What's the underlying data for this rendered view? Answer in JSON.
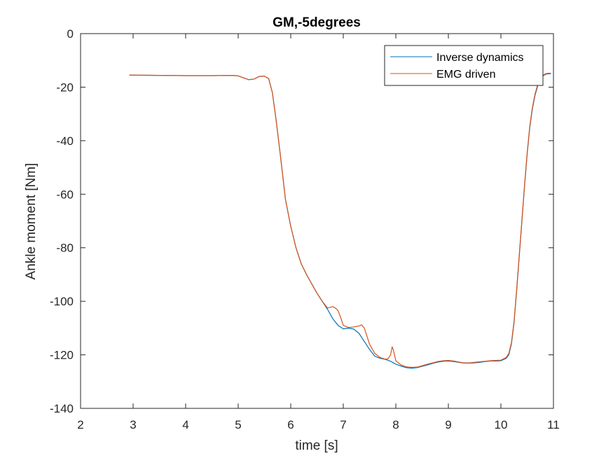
{
  "chart_data": {
    "type": "line",
    "title": "GM,-5degrees",
    "xlabel": "time  [s]",
    "ylabel": "Ankle moment [Nm]",
    "xlim": [
      2,
      11
    ],
    "ylim": [
      -140,
      0
    ],
    "xticks": [
      2,
      3,
      4,
      5,
      6,
      7,
      8,
      9,
      10,
      11
    ],
    "yticks": [
      0,
      -20,
      -40,
      -60,
      -80,
      -100,
      -120,
      -140
    ],
    "grid": false,
    "legend_position": "top-right",
    "series": [
      {
        "name": "Inverse dynamics",
        "color": "#0072BD",
        "x": [
          2.93,
          3.5,
          4.0,
          4.5,
          4.9,
          5.0,
          5.1,
          5.2,
          5.3,
          5.4,
          5.5,
          5.58,
          5.65,
          5.72,
          5.8,
          5.9,
          6.0,
          6.1,
          6.2,
          6.3,
          6.4,
          6.5,
          6.6,
          6.7,
          6.8,
          6.9,
          7.0,
          7.1,
          7.2,
          7.3,
          7.4,
          7.5,
          7.6,
          7.7,
          7.8,
          7.9,
          8.0,
          8.1,
          8.2,
          8.3,
          8.4,
          8.5,
          8.6,
          8.7,
          8.8,
          8.9,
          9.0,
          9.1,
          9.2,
          9.3,
          9.4,
          9.5,
          9.6,
          9.7,
          9.8,
          9.9,
          10.0,
          10.1,
          10.15,
          10.2,
          10.25,
          10.3,
          10.35,
          10.4,
          10.45,
          10.5,
          10.55,
          10.6,
          10.65,
          10.7,
          10.75,
          10.8,
          10.85,
          10.9,
          10.95
        ],
        "y": [
          -15.5,
          -15.6,
          -15.7,
          -15.7,
          -15.6,
          -15.8,
          -16.5,
          -17.2,
          -17.0,
          -16.0,
          -15.9,
          -16.8,
          -22,
          -32,
          -45,
          -62,
          -72,
          -80,
          -86,
          -90,
          -93.5,
          -97,
          -100,
          -103,
          -106.5,
          -109,
          -110.3,
          -110.0,
          -110.4,
          -112,
          -115,
          -118,
          -120.5,
          -121.3,
          -121.7,
          -122.4,
          -123.5,
          -124.2,
          -124.8,
          -125.0,
          -124.8,
          -124.3,
          -123.8,
          -123.2,
          -122.7,
          -122.4,
          -122.3,
          -122.5,
          -122.8,
          -123.1,
          -123.1,
          -123.0,
          -122.8,
          -122.5,
          -122.3,
          -122.3,
          -122.2,
          -121.3,
          -120.0,
          -116.0,
          -108.0,
          -96.0,
          -83.0,
          -70.0,
          -57.0,
          -45.0,
          -35.0,
          -28.0,
          -23.0,
          -19.5,
          -17.0,
          -15.8,
          -15.2,
          -15.0,
          -15.0
        ]
      },
      {
        "name": "EMG driven",
        "color": "#D95319",
        "x": [
          2.93,
          3.5,
          4.0,
          4.5,
          4.9,
          5.0,
          5.1,
          5.2,
          5.3,
          5.4,
          5.5,
          5.58,
          5.65,
          5.72,
          5.8,
          5.9,
          6.0,
          6.1,
          6.2,
          6.3,
          6.4,
          6.5,
          6.6,
          6.7,
          6.8,
          6.85,
          6.9,
          6.95,
          7.0,
          7.1,
          7.2,
          7.3,
          7.35,
          7.4,
          7.5,
          7.6,
          7.7,
          7.8,
          7.85,
          7.9,
          7.93,
          7.95,
          7.98,
          8.0,
          8.05,
          8.1,
          8.2,
          8.3,
          8.4,
          8.5,
          8.6,
          8.7,
          8.8,
          8.9,
          9.0,
          9.1,
          9.2,
          9.3,
          9.4,
          9.5,
          9.6,
          9.7,
          9.8,
          9.9,
          10.0,
          10.1,
          10.15,
          10.2,
          10.25,
          10.3,
          10.35,
          10.4,
          10.45,
          10.5,
          10.55,
          10.6,
          10.65,
          10.7,
          10.75,
          10.8,
          10.85,
          10.9,
          10.95
        ],
        "y": [
          -15.5,
          -15.6,
          -15.7,
          -15.7,
          -15.6,
          -15.8,
          -16.5,
          -17.2,
          -17.0,
          -16.0,
          -15.9,
          -16.8,
          -22,
          -32,
          -45,
          -62,
          -72,
          -80,
          -86,
          -90,
          -93.5,
          -97,
          -100,
          -102.5,
          -102.0,
          -102.5,
          -103.5,
          -106.0,
          -109.0,
          -109.8,
          -109.6,
          -109.2,
          -108.8,
          -110.0,
          -116.0,
          -119.5,
          -121.0,
          -121.6,
          -121.5,
          -120.0,
          -117.0,
          -118.0,
          -120.5,
          -122.2,
          -123.0,
          -123.8,
          -124.5,
          -124.7,
          -124.6,
          -124.1,
          -123.5,
          -123.0,
          -122.5,
          -122.2,
          -122.1,
          -122.3,
          -122.7,
          -123.0,
          -123.0,
          -122.8,
          -122.6,
          -122.4,
          -122.2,
          -122.1,
          -122.0,
          -121.0,
          -119.5,
          -115.5,
          -107.5,
          -95.5,
          -82.5,
          -69.5,
          -56.5,
          -44.5,
          -34.5,
          -27.5,
          -22.5,
          -19.0,
          -16.8,
          -15.6,
          -15.0,
          -14.8,
          -14.8
        ]
      }
    ]
  }
}
